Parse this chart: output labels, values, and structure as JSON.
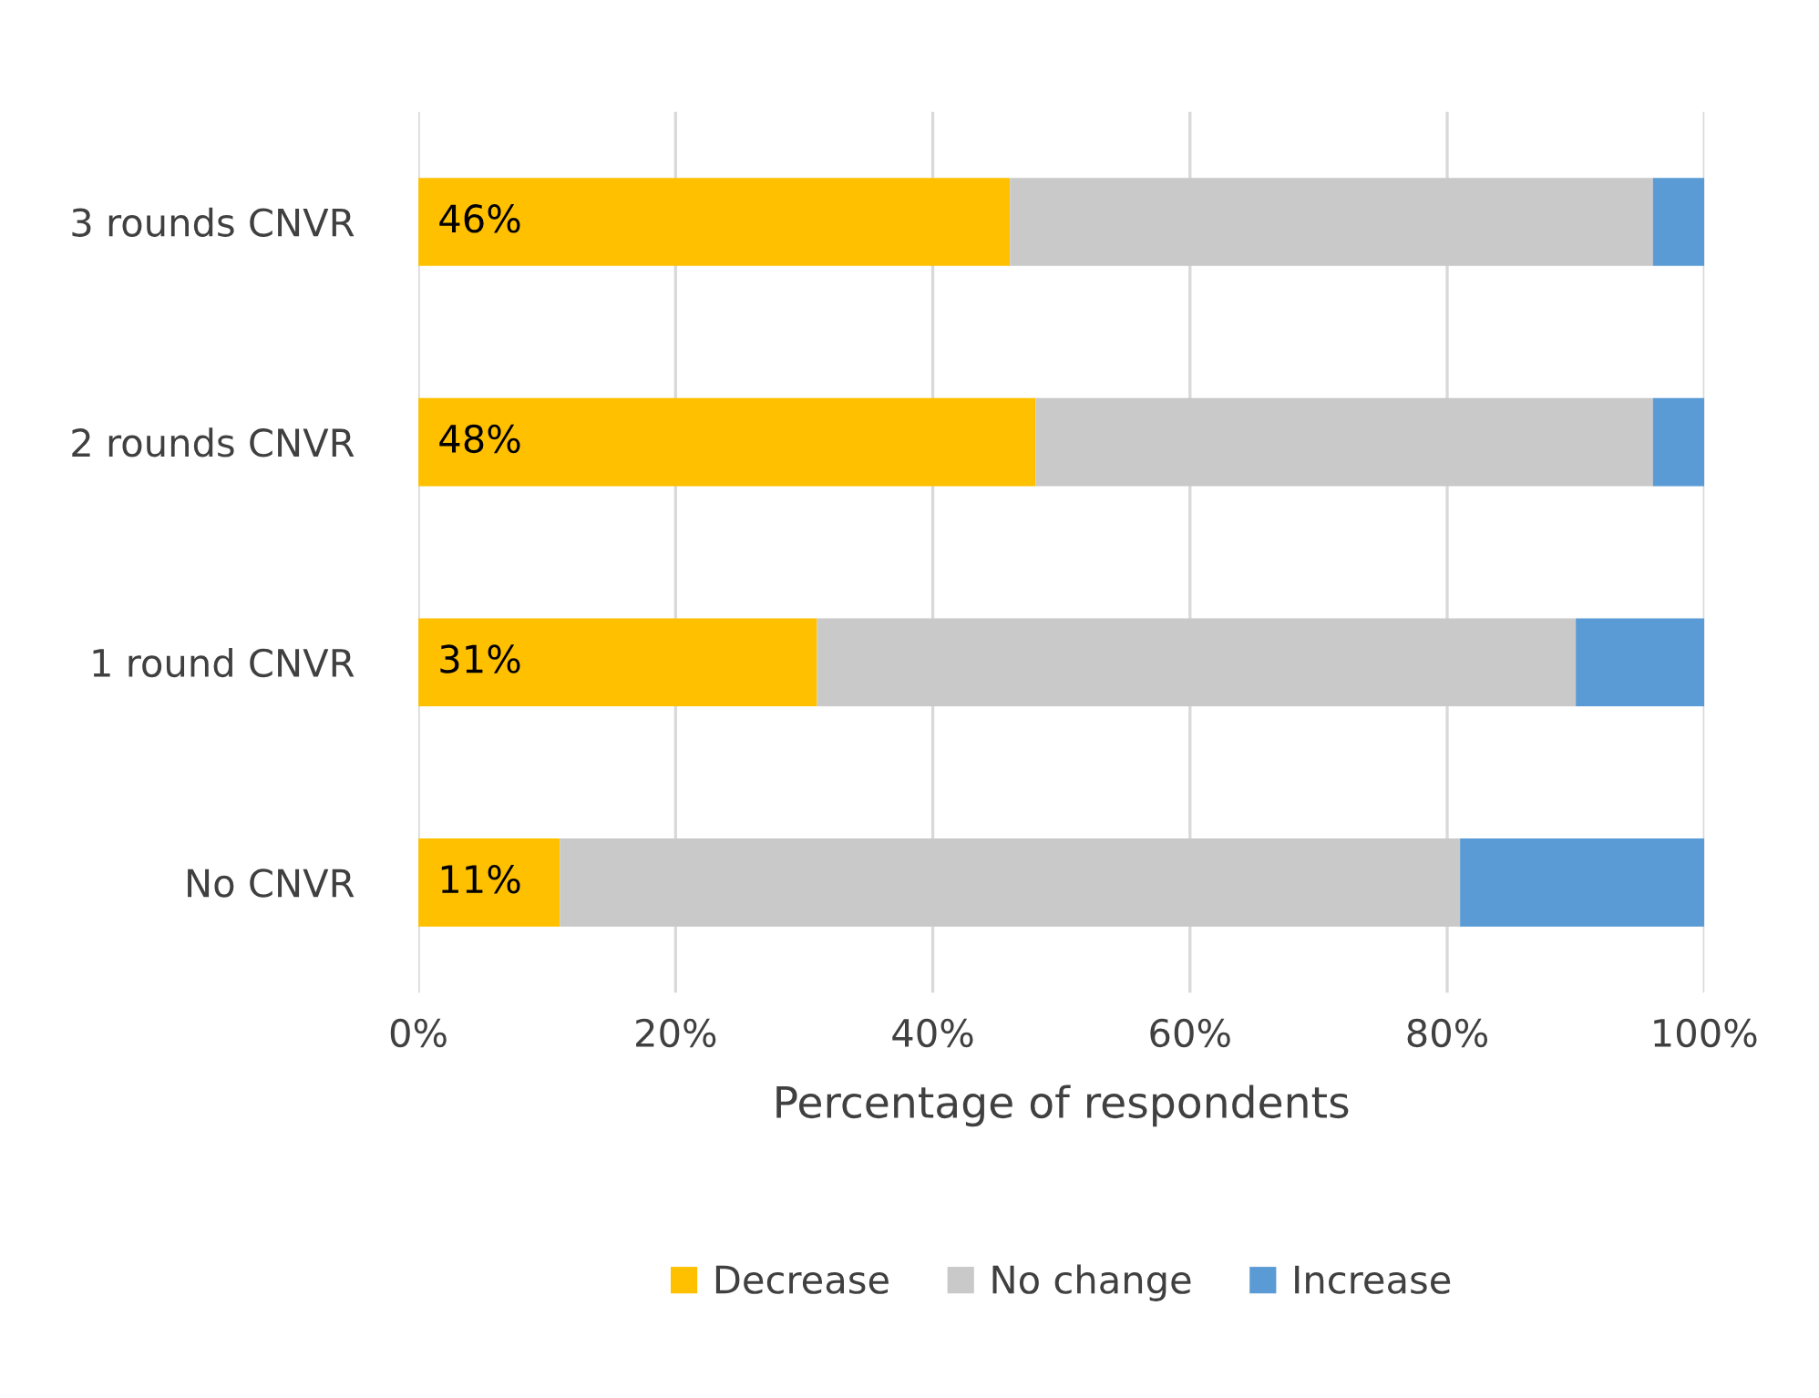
{
  "chart_data": {
    "type": "bar",
    "orientation": "horizontal",
    "stacked": true,
    "categories": [
      "3 rounds CNVR",
      "2 rounds CNVR",
      "1 round CNVR",
      "No CNVR"
    ],
    "series": [
      {
        "name": "Decrease",
        "color": "#ffc000",
        "values": [
          46,
          48,
          31,
          11
        ],
        "value_labels": [
          "46%",
          "48%",
          "31%",
          "11%"
        ]
      },
      {
        "name": "No change",
        "color": "#c9c9c9",
        "values": [
          50,
          48,
          59,
          70
        ]
      },
      {
        "name": "Increase",
        "color": "#5b9bd5",
        "values": [
          4,
          4,
          10,
          19
        ]
      }
    ],
    "xlabel": "Percentage of respondents",
    "xlim": [
      0,
      100
    ],
    "xticks": [
      {
        "value": 0,
        "label": "0%"
      },
      {
        "value": 20,
        "label": "20%"
      },
      {
        "value": 40,
        "label": "40%"
      },
      {
        "value": 60,
        "label": "60%"
      },
      {
        "value": 80,
        "label": "80%"
      },
      {
        "value": 100,
        "label": "100%"
      }
    ],
    "grid": "x",
    "legend": "bottom"
  }
}
